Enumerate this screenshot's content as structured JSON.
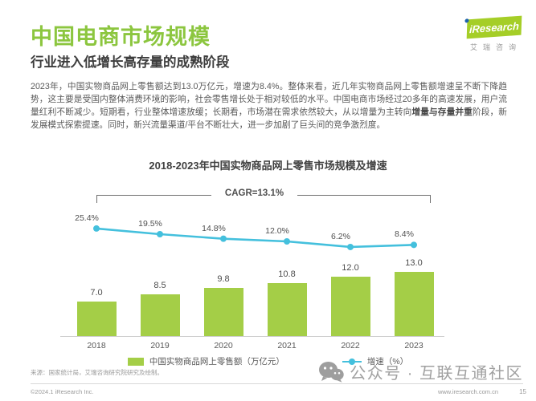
{
  "header": {
    "title": "中国电商市场规模",
    "subtitle": "行业进入低增长高存量的成熟阶段"
  },
  "logo": {
    "brand": "iResearch",
    "brand_cn": "艾瑞咨询"
  },
  "body": {
    "paragraph_pre": "2023年，中国实物商品网上零售额达到13.0万亿元，增速为8.4%。整体来看，近几年实物商品网上零售额增速呈不断下降趋势，这主要是受国内整体消费环境的影响，社会零售增长处于相对较低的水平。中国电商市场经过20多年的高速发展，用户流量红利不断减少。短期看，行业整体增速放缓；长期看，市场潜在需求依然较大，从以增量为主转向",
    "paragraph_bold": "增量与存量并重",
    "paragraph_post": "阶段，新发展模式探索提速。同时，新兴流量渠道/平台不断壮大，进一步加剧了巨头间的竞争激烈度。"
  },
  "chart_data": {
    "type": "bar+line",
    "title": "2018-2023年中国实物商品网上零售市场规模及增速",
    "cagr_label": "CAGR=13.1%",
    "categories": [
      "2018",
      "2019",
      "2020",
      "2021",
      "2022",
      "2023"
    ],
    "series": [
      {
        "name": "中国实物商品网上零售额（万亿元）",
        "type": "bar",
        "values": [
          7.0,
          8.5,
          9.8,
          10.8,
          12.0,
          13.0
        ],
        "color": "#A4CE47"
      },
      {
        "name": "增速（%）",
        "type": "line",
        "values": [
          25.4,
          19.5,
          14.8,
          12.0,
          6.2,
          8.4
        ],
        "color": "#44C0DD"
      }
    ],
    "bar_labels": [
      "7.0",
      "8.5",
      "9.8",
      "10.8",
      "12.0",
      "13.0"
    ],
    "line_labels": [
      "25.4%",
      "19.5%",
      "14.8%",
      "12.0%",
      "6.2%",
      "8.4%"
    ],
    "xlabel": "",
    "ylabel": "",
    "grid": false,
    "legend_position": "bottom",
    "colors": {
      "bar_green": "#A4CE47",
      "line_cyan": "#44C0DD",
      "title_green": "#8CC63F",
      "logo_green": "#A5CE27",
      "logo_dot_blue": "#1F63AC"
    }
  },
  "footer": {
    "source": "来源：国家统计局，艾瑞咨询研究院研究及绘制。",
    "copyright": "©2024.1 iResearch Inc.",
    "website": "www.iresearch.com.cn",
    "page_number": "15",
    "watermark": "公众号 · 互联互通社区"
  }
}
